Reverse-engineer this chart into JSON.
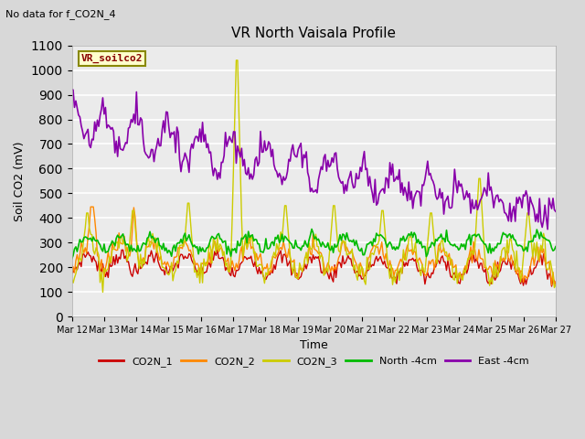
{
  "title": "VR North Vaisala Profile",
  "subtitle": "No data for f_CO2N_4",
  "box_label": "VR_soilco2",
  "xlabel": "Time",
  "ylabel": "Soil CO2 (mV)",
  "ylim": [
    0,
    1100
  ],
  "bg_color": "#d8d8d8",
  "plot_bg_color": "#ebebeb",
  "tick_labels": [
    "Mar 12",
    "Mar 13",
    "Mar 14",
    "Mar 15",
    "Mar 16",
    "Mar 17",
    "Mar 18",
    "Mar 19",
    "Mar 20",
    "Mar 21",
    "Mar 22",
    "Mar 23",
    "Mar 24",
    "Mar 25",
    "Mar 26",
    "Mar 27"
  ],
  "series": {
    "CO2N_1": {
      "color": "#cc0000",
      "lw": 1.0
    },
    "CO2N_2": {
      "color": "#ff8800",
      "lw": 1.0
    },
    "CO2N_3": {
      "color": "#cccc00",
      "lw": 1.0
    },
    "North_4cm": {
      "color": "#00bb00",
      "lw": 1.2
    },
    "East_4cm": {
      "color": "#8800aa",
      "lw": 1.2
    }
  },
  "legend_labels": [
    "CO2N_1",
    "CO2N_2",
    "CO2N_3",
    "North -4cm",
    "East -4cm"
  ],
  "legend_colors": [
    "#cc0000",
    "#ff8800",
    "#cccc00",
    "#00bb00",
    "#8800aa"
  ]
}
